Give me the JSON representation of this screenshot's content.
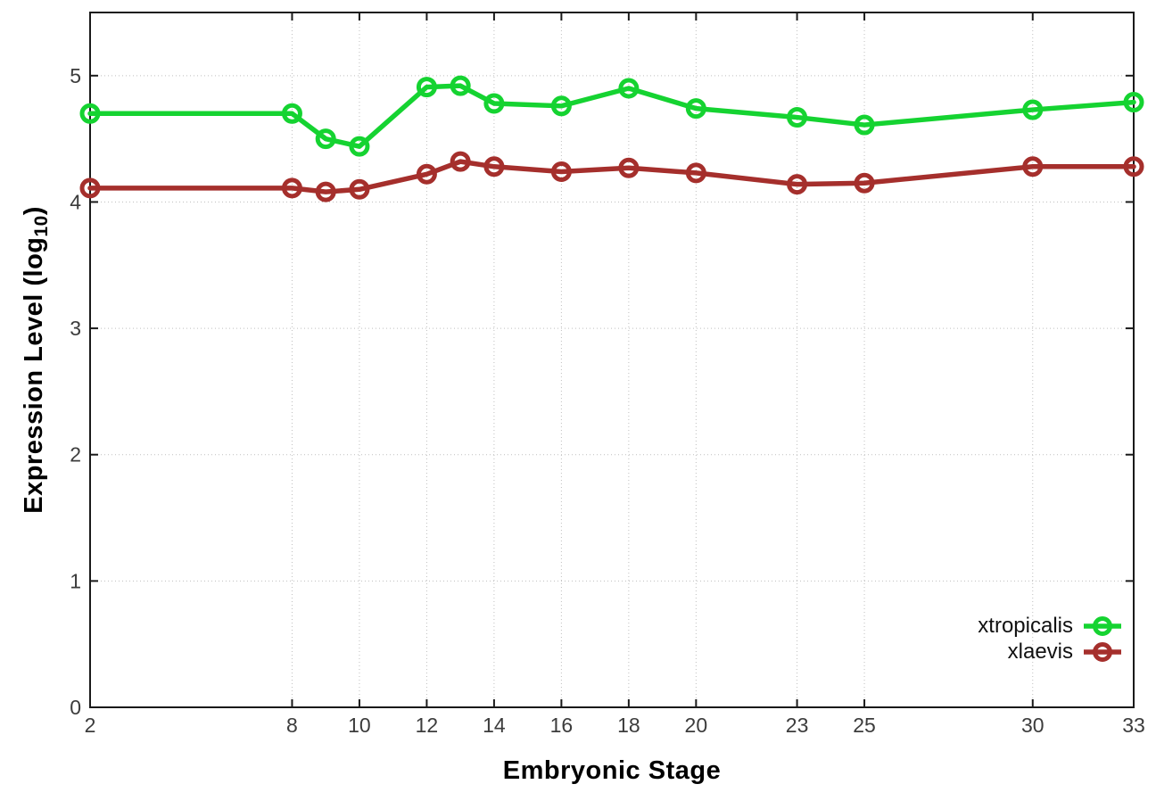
{
  "chart_data": {
    "type": "line",
    "title": "",
    "xlabel": "Embryonic Stage",
    "ylabel_main": "Expression Level (log",
    "ylabel_sub": "10",
    "ylabel_close": ")",
    "x": [
      2,
      8,
      9,
      10,
      12,
      13,
      14,
      16,
      18,
      20,
      23,
      25,
      30,
      33
    ],
    "x_tick_labels": [
      2,
      8,
      10,
      12,
      14,
      16,
      18,
      20,
      23,
      25,
      30,
      33
    ],
    "y_ticks": [
      0,
      1,
      2,
      3,
      4,
      5
    ],
    "xlim": [
      2,
      33
    ],
    "ylim": [
      0,
      5.5
    ],
    "grid": true,
    "legend_position": "bottom-right-inside",
    "series": [
      {
        "name": "xtropicalis",
        "color": "#15d331",
        "values": [
          4.7,
          4.7,
          4.5,
          4.44,
          4.91,
          4.92,
          4.78,
          4.76,
          4.9,
          4.74,
          4.67,
          4.61,
          4.73,
          4.79
        ]
      },
      {
        "name": "xlaevis",
        "color": "#a52f2c",
        "values": [
          4.11,
          4.11,
          4.08,
          4.1,
          4.22,
          4.32,
          4.28,
          4.24,
          4.27,
          4.23,
          4.14,
          4.15,
          4.28,
          4.28
        ]
      }
    ],
    "style": {
      "grid_color": "#bfbfbf",
      "border_color": "#1a1a1a",
      "tick_label_color": "#3c3c3c",
      "background": "#ffffff"
    }
  }
}
